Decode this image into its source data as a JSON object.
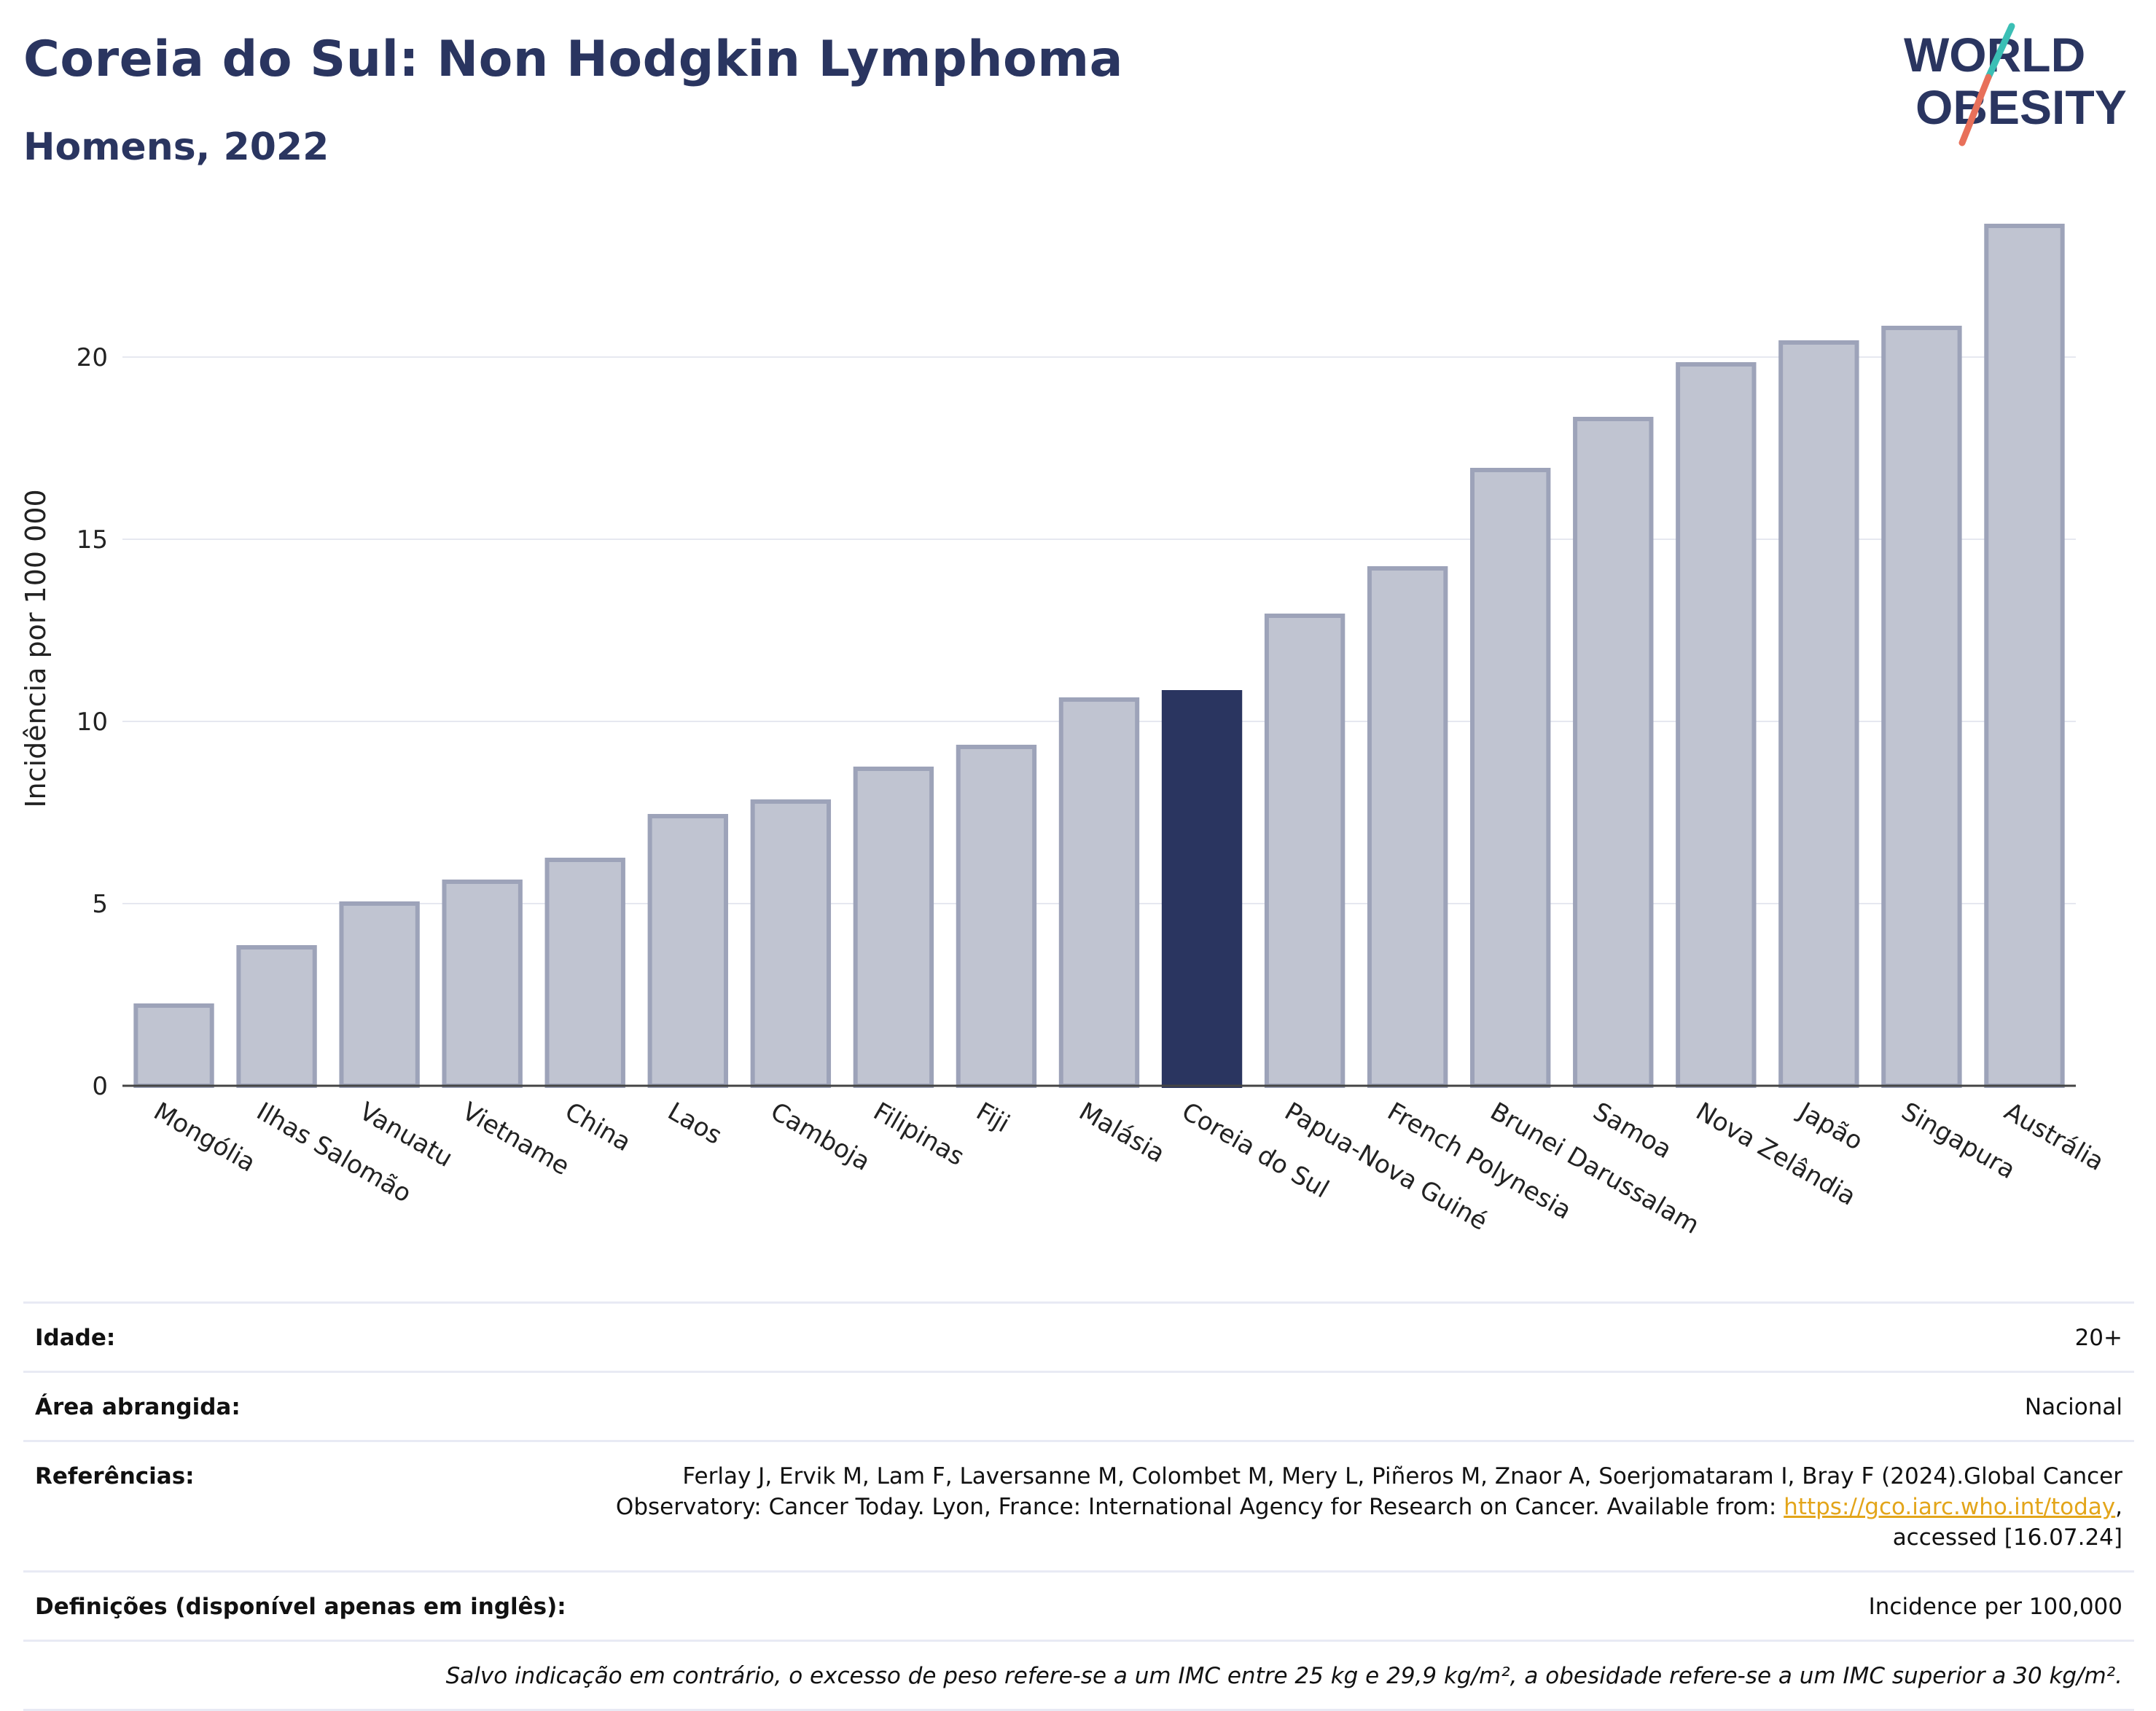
{
  "header": {
    "title": "Coreia do Sul: Non Hodgkin Lymphoma",
    "subtitle": "Homens, 2022",
    "logo_line1": "WORLD",
    "logo_line2": "OBESITY"
  },
  "chart_data": {
    "type": "bar",
    "title": "Coreia do Sul: Non Hodgkin Lymphoma",
    "subtitle": "Homens, 2022",
    "ylabel": "Incidência por 100 000",
    "xlabel": "",
    "ylim": [
      0,
      24
    ],
    "yticks": [
      0,
      5,
      10,
      15,
      20
    ],
    "grid": true,
    "highlight": "Coreia do Sul",
    "categories": [
      "Mongólia",
      "Ilhas Salomão",
      "Vanuatu",
      "Vietname",
      "China",
      "Laos",
      "Camboja",
      "Filipinas",
      "Fiji",
      "Malásia",
      "Coreia do Sul",
      "Papua-Nova Guiné",
      "French Polynesia",
      "Brunei Darussalam",
      "Samoa",
      "Nova Zelândia",
      "Japão",
      "Singapura",
      "Austrália"
    ],
    "values": [
      2.2,
      3.8,
      5.0,
      5.6,
      6.2,
      7.4,
      7.8,
      8.7,
      9.3,
      10.6,
      10.8,
      12.9,
      14.2,
      16.9,
      18.3,
      19.8,
      20.4,
      20.8,
      23.6
    ]
  },
  "colors": {
    "bar": "#c0c4d1",
    "bar_border": "#9da3b9",
    "highlight": "#2a3560",
    "title": "#2a3560",
    "grid": "#e6e8f0",
    "link": "#e3a51a",
    "logo_slash_top": "#3bbfb5",
    "logo_slash_bottom": "#e8705a"
  },
  "meta": {
    "age_label": "Idade:",
    "age_value": "20+",
    "area_label": "Área abrangida:",
    "area_value": "Nacional",
    "ref_label": "Referências:",
    "ref_text_1": "Ferlay J, Ervik M, Lam F, Laversanne M, Colombet M, Mery L, Piñeros M, Znaor A, Soerjomataram I, Bray F (2024).Global Cancer Observatory: Cancer Today. Lyon, France: International Agency for Research on Cancer. Available from: ",
    "ref_link": "https://gco.iarc.who.int/today",
    "ref_text_2": ", accessed [16.07.24]",
    "def_label": "Definições (disponível apenas em inglês):",
    "def_value": "Incidence per 100,000",
    "note": "Salvo indicação em contrário, o excesso de peso refere-se a um IMC entre 25 kg e 29,9 kg/m², a obesidade refere-se a um IMC superior a 30 kg/m²."
  }
}
